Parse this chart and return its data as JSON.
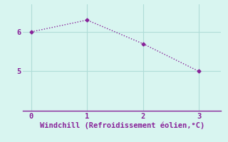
{
  "x": [
    0,
    1,
    2,
    3
  ],
  "y": [
    6.0,
    6.3,
    5.7,
    5.0
  ],
  "line_color": "#882299",
  "marker": "D",
  "marker_size": 2.5,
  "xlabel": "Windchill (Refroidissement éolien,°C)",
  "xlim": [
    -0.15,
    3.4
  ],
  "ylim": [
    4.0,
    6.7
  ],
  "yticks": [
    5,
    6
  ],
  "xticks": [
    0,
    1,
    2,
    3
  ],
  "background_color": "#d8f5f0",
  "grid_color": "#b0ddd8",
  "xlabel_fontsize": 7.5,
  "tick_fontsize": 7.5,
  "line_width": 1.0
}
